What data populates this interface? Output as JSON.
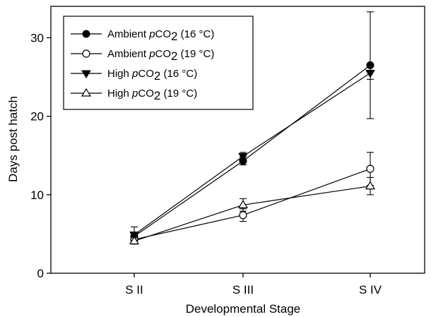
{
  "chart_data": {
    "type": "line",
    "xlabel": "Developmental Stage",
    "ylabel": "Days post hatch",
    "categories": [
      "S II",
      "S III",
      "S IV"
    ],
    "ylim": [
      0,
      34
    ],
    "yticks": [
      0,
      10,
      20,
      30
    ],
    "grid": false,
    "legend_position": "top-left",
    "series": [
      {
        "name": "Ambient pCO2 (16 °C)",
        "name_parts": [
          "Ambient ",
          "p",
          "CO",
          "2",
          " (16 °C)"
        ],
        "marker": "circle-filled",
        "values": [
          4.7,
          14.3,
          26.5
        ],
        "err_low": [
          4.2,
          13.8,
          19.7
        ],
        "err_high": [
          5.2,
          14.8,
          33.3
        ]
      },
      {
        "name": "Ambient pCO2 (19 °C)",
        "name_parts": [
          "Ambient ",
          "p",
          "CO",
          "2",
          " (19 °C)"
        ],
        "marker": "circle-open",
        "values": [
          4.3,
          7.4,
          13.3
        ],
        "err_low": [
          3.9,
          6.6,
          11.2
        ],
        "err_high": [
          4.7,
          8.2,
          15.4
        ]
      },
      {
        "name": "High pCO2 (16 °C)",
        "name_parts": [
          "High ",
          "p",
          "CO",
          "2",
          " (16 °C)"
        ],
        "marker": "triangle-down-filled",
        "values": [
          4.9,
          14.9,
          25.5
        ],
        "err_low": [
          4.2,
          14.4,
          24.7
        ],
        "err_high": [
          5.9,
          15.4,
          26.3
        ]
      },
      {
        "name": "High pCO2 (19 °C)",
        "name_parts": [
          "High ",
          "p",
          "CO",
          "2",
          " (19 °C)"
        ],
        "marker": "triangle-up-open",
        "values": [
          4.1,
          8.7,
          11.1
        ],
        "err_low": [
          3.7,
          7.9,
          10.0
        ],
        "err_high": [
          4.5,
          9.5,
          12.2
        ]
      }
    ]
  }
}
